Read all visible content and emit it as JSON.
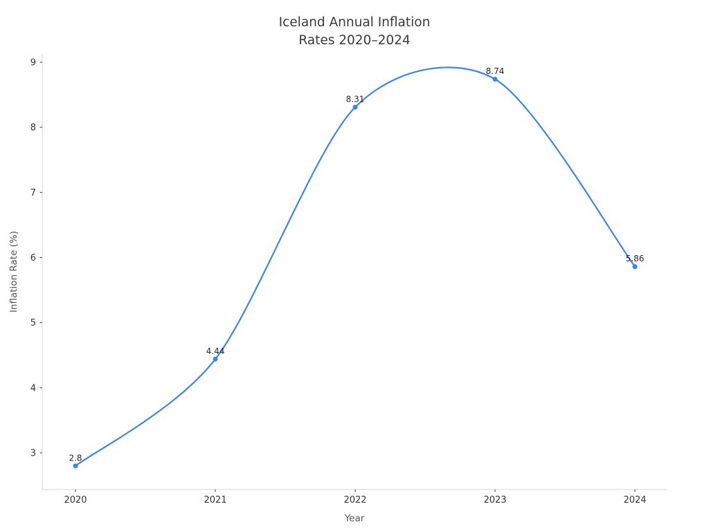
{
  "page": {
    "background": "#ffffff"
  },
  "chart_data": {
    "type": "line",
    "title_lines": [
      "Iceland Annual Inflation",
      "Rates 2020–2024"
    ],
    "xlabel": "Year",
    "ylabel": "Inflation Rate (%)",
    "x": [
      2020,
      2021,
      2022,
      2023,
      2024
    ],
    "series": [
      {
        "name": "Inflation Rate (%)",
        "values": [
          2.8,
          4.44,
          8.31,
          8.74,
          5.86
        ]
      }
    ],
    "point_labels": [
      "2.8",
      "4.44",
      "8.31",
      "8.74",
      "5.86"
    ],
    "xticks": [
      2020,
      2021,
      2022,
      2023,
      2024
    ],
    "yticks": [
      3,
      4,
      5,
      6,
      7,
      8,
      9
    ],
    "xlim": [
      2019.76,
      2024.23
    ],
    "ylim": [
      2.44,
      9.13
    ],
    "grid": false,
    "legend_position": "none",
    "line_style": "smooth-spline",
    "marker": "circle",
    "colors": {
      "line": "#3c84e9",
      "marker": "#3c84e9",
      "title_text": "#3a3a3a",
      "tick_text": "#333333",
      "axis_label_text": "#555555",
      "annotation_text": "#262626",
      "spine": "#d6d6d6",
      "tick_mark": "#3a3a3a"
    }
  }
}
